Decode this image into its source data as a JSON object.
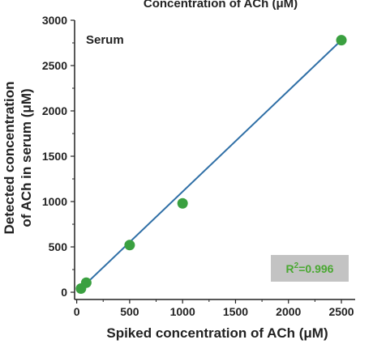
{
  "chart_data": {
    "type": "scatter",
    "top_title": "Concentration of ACh (μM)",
    "panel_label": "Serum",
    "xlabel": "Spiked concentration of ACh (μM)",
    "ylabel_line1": "Detected concentration",
    "ylabel_line2": "of ACh in serum (μM)",
    "xlim": [
      -20,
      2630
    ],
    "ylim": [
      -80,
      3000
    ],
    "x_ticks": [
      0,
      500,
      1000,
      1500,
      2000,
      2500
    ],
    "y_ticks": [
      0,
      500,
      1000,
      1500,
      2000,
      2500,
      3000
    ],
    "grid": false,
    "points": [
      {
        "x": 40,
        "y": 40
      },
      {
        "x": 90,
        "y": 105
      },
      {
        "x": 500,
        "y": 520
      },
      {
        "x": 1000,
        "y": 980
      },
      {
        "x": 2500,
        "y": 2780
      }
    ],
    "fit_line": {
      "x_start": 40,
      "y_start": 40,
      "x_end": 2500,
      "y_end": 2780
    },
    "annotation": {
      "prefix": "R",
      "sup": "2",
      "suffix": "=0.996"
    },
    "colors": {
      "points": "#3aa040",
      "line": "#2f6fa6",
      "annotation_text": "#4aa832",
      "annotation_bg": "#c3c3c3",
      "axis": "#222222"
    }
  }
}
